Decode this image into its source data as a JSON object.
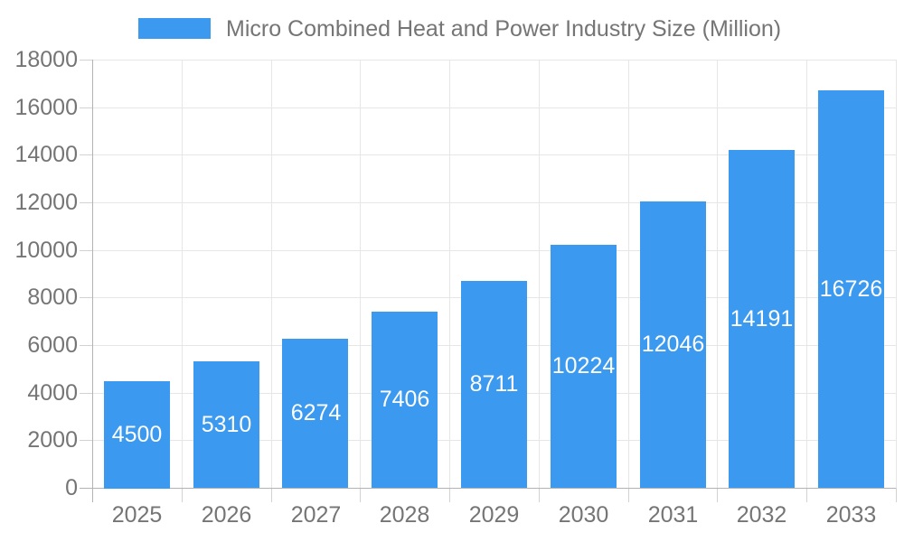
{
  "chart_data": {
    "type": "bar",
    "title": "",
    "categories": [
      "2025",
      "2026",
      "2027",
      "2028",
      "2029",
      "2030",
      "2031",
      "2032",
      "2033"
    ],
    "series": [
      {
        "name": "Micro Combined Heat and Power Industry Size (Million)",
        "values": [
          4500,
          5310,
          6274,
          7406,
          8711,
          10224,
          12046,
          14191,
          16726
        ]
      }
    ],
    "xlabel": "",
    "ylabel": "",
    "ylim": [
      0,
      18000
    ],
    "yticks": [
      0,
      2000,
      4000,
      6000,
      8000,
      10000,
      12000,
      14000,
      16000,
      18000
    ],
    "grid": true,
    "legend_position": "top",
    "bar_value_labels": "inside-center"
  },
  "colors": {
    "bar": "#3B99F0",
    "axis_line": "#b3b3b3",
    "tick_line": "#d2d2d2",
    "gridline": "#e6e6e6",
    "axis_text": "#757575",
    "legend_text": "#757575",
    "bar_label_text": "#ffffff",
    "background": "#ffffff"
  }
}
